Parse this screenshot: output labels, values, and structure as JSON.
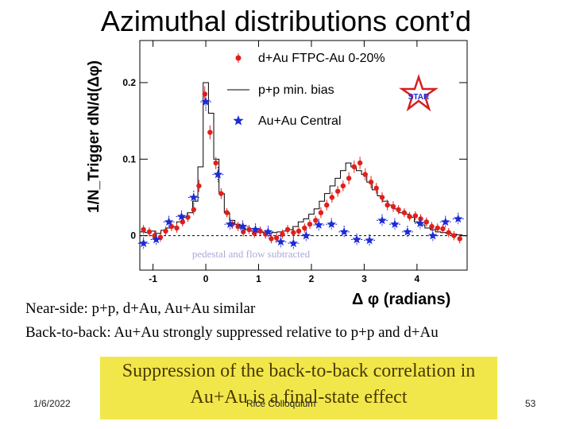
{
  "slide": {
    "title": "Azimuthal distributions cont’d",
    "y_axis_label": "1/N_Trigger dN/d(Δφ)",
    "x_axis_label": "Δ φ (radians)",
    "pedestal_note": "pedestal and flow subtracted",
    "star_logo_text": "STAR",
    "line1": "Near-side: p+p, d+Au, Au+Au similar",
    "line2": "Back-to-back: Au+Au strongly suppressed relative to p+p and d+Au",
    "callout": "Suppression of the back-to-back correlation in Au+Au is a final-state effect",
    "date": "1/6/2022",
    "footer_center": "Rice Colloquium",
    "page_number": "53"
  },
  "colors": {
    "dau": "#e0201b",
    "pp": "#000000",
    "auau": "#1c2bd6",
    "callout_bg": "#f2e74a"
  },
  "chart_data": {
    "type": "scatter",
    "title": "",
    "xlabel": "Δ φ (radians)",
    "ylabel": "1/N_Trigger dN/d(Δφ)",
    "xlim": [
      -1.25,
      4.95
    ],
    "ylim": [
      -0.045,
      0.255
    ],
    "xticks": [
      -1,
      0,
      1,
      2,
      3,
      4
    ],
    "yticks": [
      0,
      0.1,
      0.2
    ],
    "legend": [
      "d+Au FTPC-Au 0-20%",
      "p+p min. bias",
      "Au+Au Central"
    ],
    "legend_position": "top-right",
    "series": [
      {
        "name": "d+Au FTPC-Au 0-20%",
        "marker": "dot",
        "x": [
          -1.18,
          -1.07,
          -0.97,
          -0.86,
          -0.76,
          -0.65,
          -0.55,
          -0.44,
          -0.34,
          -0.23,
          -0.13,
          -0.02,
          0.08,
          0.19,
          0.29,
          0.4,
          0.5,
          0.61,
          0.71,
          0.82,
          0.92,
          1.03,
          1.13,
          1.24,
          1.34,
          1.45,
          1.55,
          1.66,
          1.76,
          1.87,
          1.97,
          2.08,
          2.18,
          2.29,
          2.39,
          2.5,
          2.6,
          2.71,
          2.81,
          2.92,
          3.02,
          3.13,
          3.23,
          3.34,
          3.44,
          3.55,
          3.65,
          3.76,
          3.86,
          3.97,
          4.07,
          4.18,
          4.28,
          4.39,
          4.49,
          4.6,
          4.7,
          4.81
        ],
        "y": [
          0.008,
          0.005,
          0.0,
          -0.002,
          0.006,
          0.012,
          0.01,
          0.018,
          0.024,
          0.034,
          0.065,
          0.185,
          0.135,
          0.095,
          0.055,
          0.03,
          0.015,
          0.012,
          0.005,
          0.008,
          0.003,
          0.006,
          0.002,
          -0.004,
          -0.003,
          0.002,
          0.008,
          0.004,
          0.006,
          0.01,
          0.015,
          0.02,
          0.03,
          0.04,
          0.05,
          0.058,
          0.065,
          0.075,
          0.09,
          0.095,
          0.08,
          0.07,
          0.062,
          0.05,
          0.04,
          0.038,
          0.034,
          0.03,
          0.025,
          0.026,
          0.022,
          0.018,
          0.012,
          0.01,
          0.009,
          0.004,
          0.0,
          -0.004
        ],
        "err": [
          0.006,
          0.006,
          0.006,
          0.006,
          0.006,
          0.006,
          0.006,
          0.006,
          0.006,
          0.007,
          0.008,
          0.01,
          0.009,
          0.008,
          0.007,
          0.006,
          0.006,
          0.006,
          0.006,
          0.006,
          0.006,
          0.006,
          0.006,
          0.006,
          0.006,
          0.006,
          0.006,
          0.006,
          0.006,
          0.006,
          0.006,
          0.006,
          0.007,
          0.007,
          0.007,
          0.007,
          0.007,
          0.008,
          0.008,
          0.008,
          0.008,
          0.008,
          0.007,
          0.007,
          0.007,
          0.007,
          0.006,
          0.006,
          0.006,
          0.006,
          0.006,
          0.006,
          0.006,
          0.006,
          0.006,
          0.006,
          0.006,
          0.006
        ]
      },
      {
        "name": "p+p min. bias",
        "marker": "step",
        "x": [
          -1.25,
          -1.15,
          -1.05,
          -0.95,
          -0.85,
          -0.75,
          -0.65,
          -0.55,
          -0.45,
          -0.35,
          -0.25,
          -0.15,
          -0.05,
          0.05,
          0.15,
          0.25,
          0.35,
          0.45,
          0.55,
          0.65,
          0.75,
          0.85,
          0.95,
          1.05,
          1.15,
          1.25,
          1.35,
          1.45,
          1.55,
          1.65,
          1.75,
          1.85,
          1.95,
          2.05,
          2.15,
          2.25,
          2.35,
          2.45,
          2.55,
          2.65,
          2.75,
          2.85,
          2.95,
          3.05,
          3.15,
          3.25,
          3.35,
          3.45,
          3.55,
          3.65,
          3.75,
          3.85,
          3.95,
          4.05,
          4.15,
          4.25,
          4.35,
          4.45,
          4.55,
          4.65,
          4.75,
          4.85
        ],
        "y": [
          0.005,
          0.004,
          0.006,
          0.003,
          0.007,
          0.01,
          0.012,
          0.018,
          0.024,
          0.03,
          0.045,
          0.09,
          0.2,
          0.16,
          0.1,
          0.055,
          0.03,
          0.02,
          0.015,
          0.01,
          0.008,
          0.006,
          0.005,
          0.004,
          0.003,
          0.004,
          0.005,
          0.006,
          0.008,
          0.012,
          0.018,
          0.022,
          0.028,
          0.035,
          0.045,
          0.055,
          0.065,
          0.075,
          0.085,
          0.095,
          0.09,
          0.085,
          0.08,
          0.07,
          0.06,
          0.052,
          0.045,
          0.04,
          0.035,
          0.03,
          0.028,
          0.024,
          0.018,
          0.014,
          0.01,
          0.008,
          0.005,
          0.004,
          0.003,
          0.002,
          0.001,
          0.0
        ]
      },
      {
        "name": "Au+Au Central",
        "marker": "star",
        "x": [
          -1.18,
          -0.94,
          -0.7,
          -0.46,
          -0.23,
          0.0,
          0.23,
          0.46,
          0.7,
          0.94,
          1.18,
          1.42,
          1.66,
          1.9,
          2.14,
          2.38,
          2.62,
          2.86,
          3.1,
          3.34,
          3.58,
          3.82,
          4.06,
          4.3,
          4.54,
          4.78
        ],
        "y": [
          -0.01,
          -0.005,
          0.018,
          0.025,
          0.05,
          0.175,
          0.08,
          0.015,
          0.012,
          0.008,
          0.005,
          -0.008,
          -0.01,
          0.0,
          0.014,
          0.015,
          0.005,
          -0.005,
          -0.006,
          0.02,
          0.015,
          0.005,
          0.016,
          0.0,
          0.018,
          0.022
        ],
        "err": [
          0.008,
          0.008,
          0.008,
          0.008,
          0.009,
          0.012,
          0.01,
          0.008,
          0.008,
          0.008,
          0.008,
          0.008,
          0.008,
          0.008,
          0.008,
          0.008,
          0.008,
          0.008,
          0.008,
          0.008,
          0.008,
          0.008,
          0.008,
          0.008,
          0.008,
          0.008
        ]
      }
    ]
  }
}
